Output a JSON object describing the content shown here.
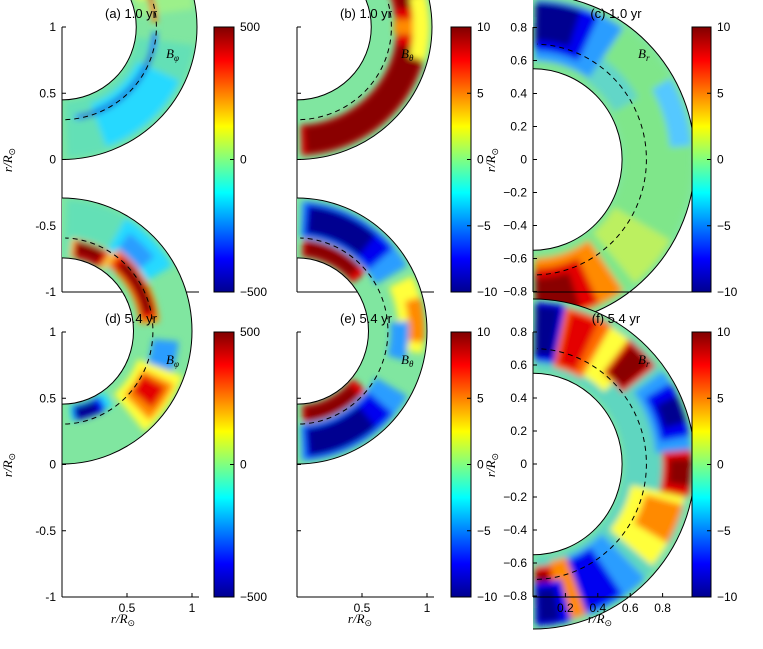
{
  "figure": {
    "xlabel": "r/R⊙",
    "ylabel": "r/R⊙"
  },
  "chart_data": [
    {
      "id": "a",
      "type": "heatmap",
      "title": "(a) 1.0 yr",
      "annotation": "Bφ",
      "r_inner": 0.55,
      "r_outer": 1.0,
      "tachocline_r": 0.7,
      "xticks": [],
      "yticks": [
        "1",
        "0.5",
        "0",
        "-0.5",
        "-1"
      ],
      "colorbar": {
        "min": -500,
        "max": 500,
        "ticks": [
          "500",
          "0",
          "−500"
        ]
      },
      "pattern": "bphi1"
    },
    {
      "id": "b",
      "type": "heatmap",
      "title": "(b) 1.0 yr",
      "annotation": "Bθ",
      "r_inner": 0.55,
      "r_outer": 1.0,
      "tachocline_r": 0.7,
      "xticks": [],
      "yticks": [],
      "colorbar": {
        "min": -10,
        "max": 10,
        "ticks": [
          "10",
          "5",
          "0",
          "−5",
          "−10"
        ]
      },
      "pattern": "btheta1"
    },
    {
      "id": "c",
      "type": "heatmap",
      "title": "(c) 1.0 yr",
      "annotation": "Br",
      "r_inner": 0.55,
      "r_outer": 1.0,
      "tachocline_r": 0.7,
      "xticks": [],
      "yticks": [
        "0.8",
        "0.6",
        "0.4",
        "0.2",
        "0",
        "−0.2",
        "−0.4",
        "−0.6",
        "−0.8"
      ],
      "colorbar": {
        "min": -10,
        "max": 10,
        "ticks": [
          "10",
          "5",
          "0",
          "−5",
          "−10"
        ]
      },
      "pattern": "br1"
    },
    {
      "id": "d",
      "type": "heatmap",
      "title": "(d) 5.4 yr",
      "annotation": "Bφ",
      "r_inner": 0.55,
      "r_outer": 1.0,
      "tachocline_r": 0.7,
      "xticks": [
        "0.5",
        "1"
      ],
      "yticks": [
        "1",
        "0.5",
        "0",
        "-0.5",
        "-1"
      ],
      "colorbar": {
        "min": -500,
        "max": 500,
        "ticks": [
          "500",
          "0",
          "−500"
        ]
      },
      "pattern": "bphi2"
    },
    {
      "id": "e",
      "type": "heatmap",
      "title": "(e) 5.4 yr",
      "annotation": "Bθ",
      "r_inner": 0.55,
      "r_outer": 1.0,
      "tachocline_r": 0.7,
      "xticks": [
        "0.5",
        "1"
      ],
      "yticks": [],
      "colorbar": {
        "min": -10,
        "max": 10,
        "ticks": [
          "10",
          "5",
          "0",
          "−5",
          "−10"
        ]
      },
      "pattern": "btheta2"
    },
    {
      "id": "f",
      "type": "heatmap",
      "title": "(f) 5.4 yr",
      "annotation": "Br",
      "r_inner": 0.55,
      "r_outer": 1.0,
      "tachocline_r": 0.7,
      "xticks": [
        "0.2",
        "0.4",
        "0.6",
        "0.8"
      ],
      "yticks": [
        "0.8",
        "0.6",
        "0.4",
        "0.2",
        "0",
        "−0.2",
        "−0.4",
        "−0.6",
        "−0.8"
      ],
      "colorbar": {
        "min": -10,
        "max": 10,
        "ticks": [
          "10",
          "5",
          "0",
          "−5",
          "−10"
        ]
      },
      "pattern": "br2"
    }
  ]
}
